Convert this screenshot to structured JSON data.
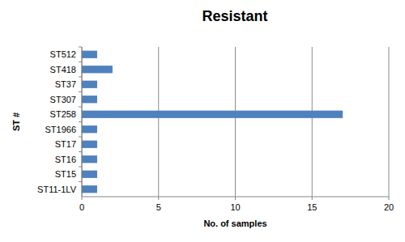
{
  "chart_data": {
    "type": "bar",
    "orientation": "horizontal",
    "title": "Resistant",
    "x_label": "No. of samples",
    "y_label": "ST #",
    "categories": [
      "ST512",
      "ST418",
      "ST37",
      "ST307",
      "ST258",
      "ST1966",
      "ST17",
      "ST16",
      "ST15",
      "ST11-1LV"
    ],
    "values": [
      1,
      2,
      1,
      1,
      17,
      1,
      1,
      1,
      1,
      1
    ],
    "color": "#4f81bd",
    "xlim": [
      0,
      20
    ],
    "xticks": [
      0,
      5,
      10,
      15,
      20
    ],
    "grid": true
  }
}
